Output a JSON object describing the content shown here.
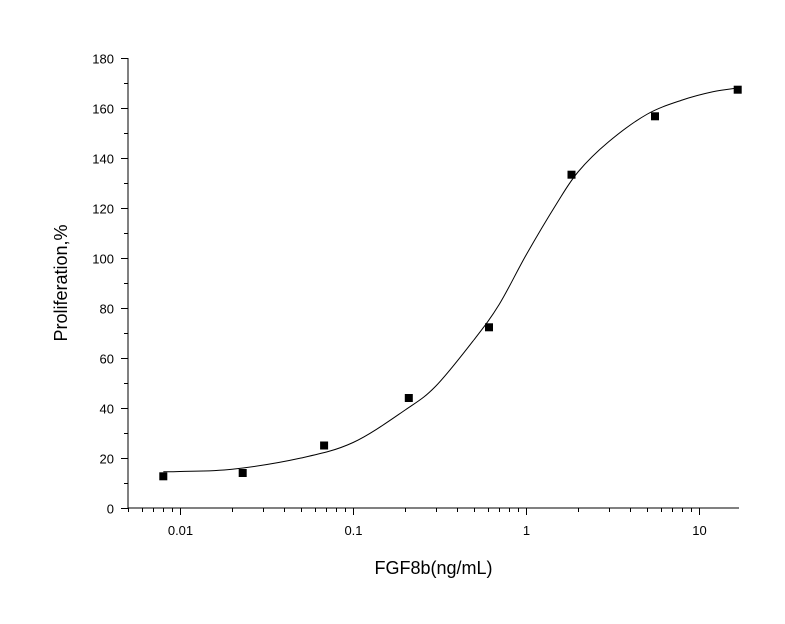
{
  "chart_data": {
    "type": "scatter",
    "xlabel": "FGF8b(ng/mL)",
    "ylabel": "Proliferation,%",
    "x_scale": "log",
    "xlim": [
      0.005,
      17
    ],
    "ylim": [
      0,
      180
    ],
    "x_ticks": [
      {
        "value": 0.01,
        "label": "0.01"
      },
      {
        "value": 0.1,
        "label": "0.1"
      },
      {
        "value": 1,
        "label": "1"
      },
      {
        "value": 10,
        "label": "10"
      }
    ],
    "y_ticks": [
      {
        "value": 0,
        "label": "0"
      },
      {
        "value": 20,
        "label": "20"
      },
      {
        "value": 40,
        "label": "40"
      },
      {
        "value": 60,
        "label": "60"
      },
      {
        "value": 80,
        "label": "80"
      },
      {
        "value": 100,
        "label": "100"
      },
      {
        "value": 120,
        "label": "120"
      },
      {
        "value": 140,
        "label": "140"
      },
      {
        "value": 160,
        "label": "160"
      },
      {
        "value": 180,
        "label": "180"
      }
    ],
    "grid": false,
    "legend": "none",
    "series": [
      {
        "marker": "square",
        "color": "#000000",
        "points": [
          {
            "x": 0.008,
            "y": 12.7
          },
          {
            "x": 0.023,
            "y": 14
          },
          {
            "x": 0.068,
            "y": 25
          },
          {
            "x": 0.21,
            "y": 44
          },
          {
            "x": 0.61,
            "y": 72.3
          },
          {
            "x": 1.83,
            "y": 133.3
          },
          {
            "x": 5.56,
            "y": 156.7
          },
          {
            "x": 16.7,
            "y": 167.3
          }
        ]
      }
    ],
    "fit_curve": {
      "kind": "4-parameter logistic",
      "color": "#000000",
      "points": [
        {
          "x": 0.008,
          "y": 14.5
        },
        {
          "x": 0.01,
          "y": 14.6
        },
        {
          "x": 0.02,
          "y": 15.5
        },
        {
          "x": 0.05,
          "y": 20
        },
        {
          "x": 0.1,
          "y": 26.2
        },
        {
          "x": 0.2,
          "y": 39.2
        },
        {
          "x": 0.3,
          "y": 48.7
        },
        {
          "x": 0.5,
          "y": 67.3
        },
        {
          "x": 0.7,
          "y": 81.5
        },
        {
          "x": 1,
          "y": 101.2
        },
        {
          "x": 1.5,
          "y": 121.7
        },
        {
          "x": 2,
          "y": 134.5
        },
        {
          "x": 3,
          "y": 146.5
        },
        {
          "x": 5,
          "y": 157.5
        },
        {
          "x": 8,
          "y": 163.2
        },
        {
          "x": 12,
          "y": 166.5
        },
        {
          "x": 16.7,
          "y": 168
        }
      ]
    }
  }
}
